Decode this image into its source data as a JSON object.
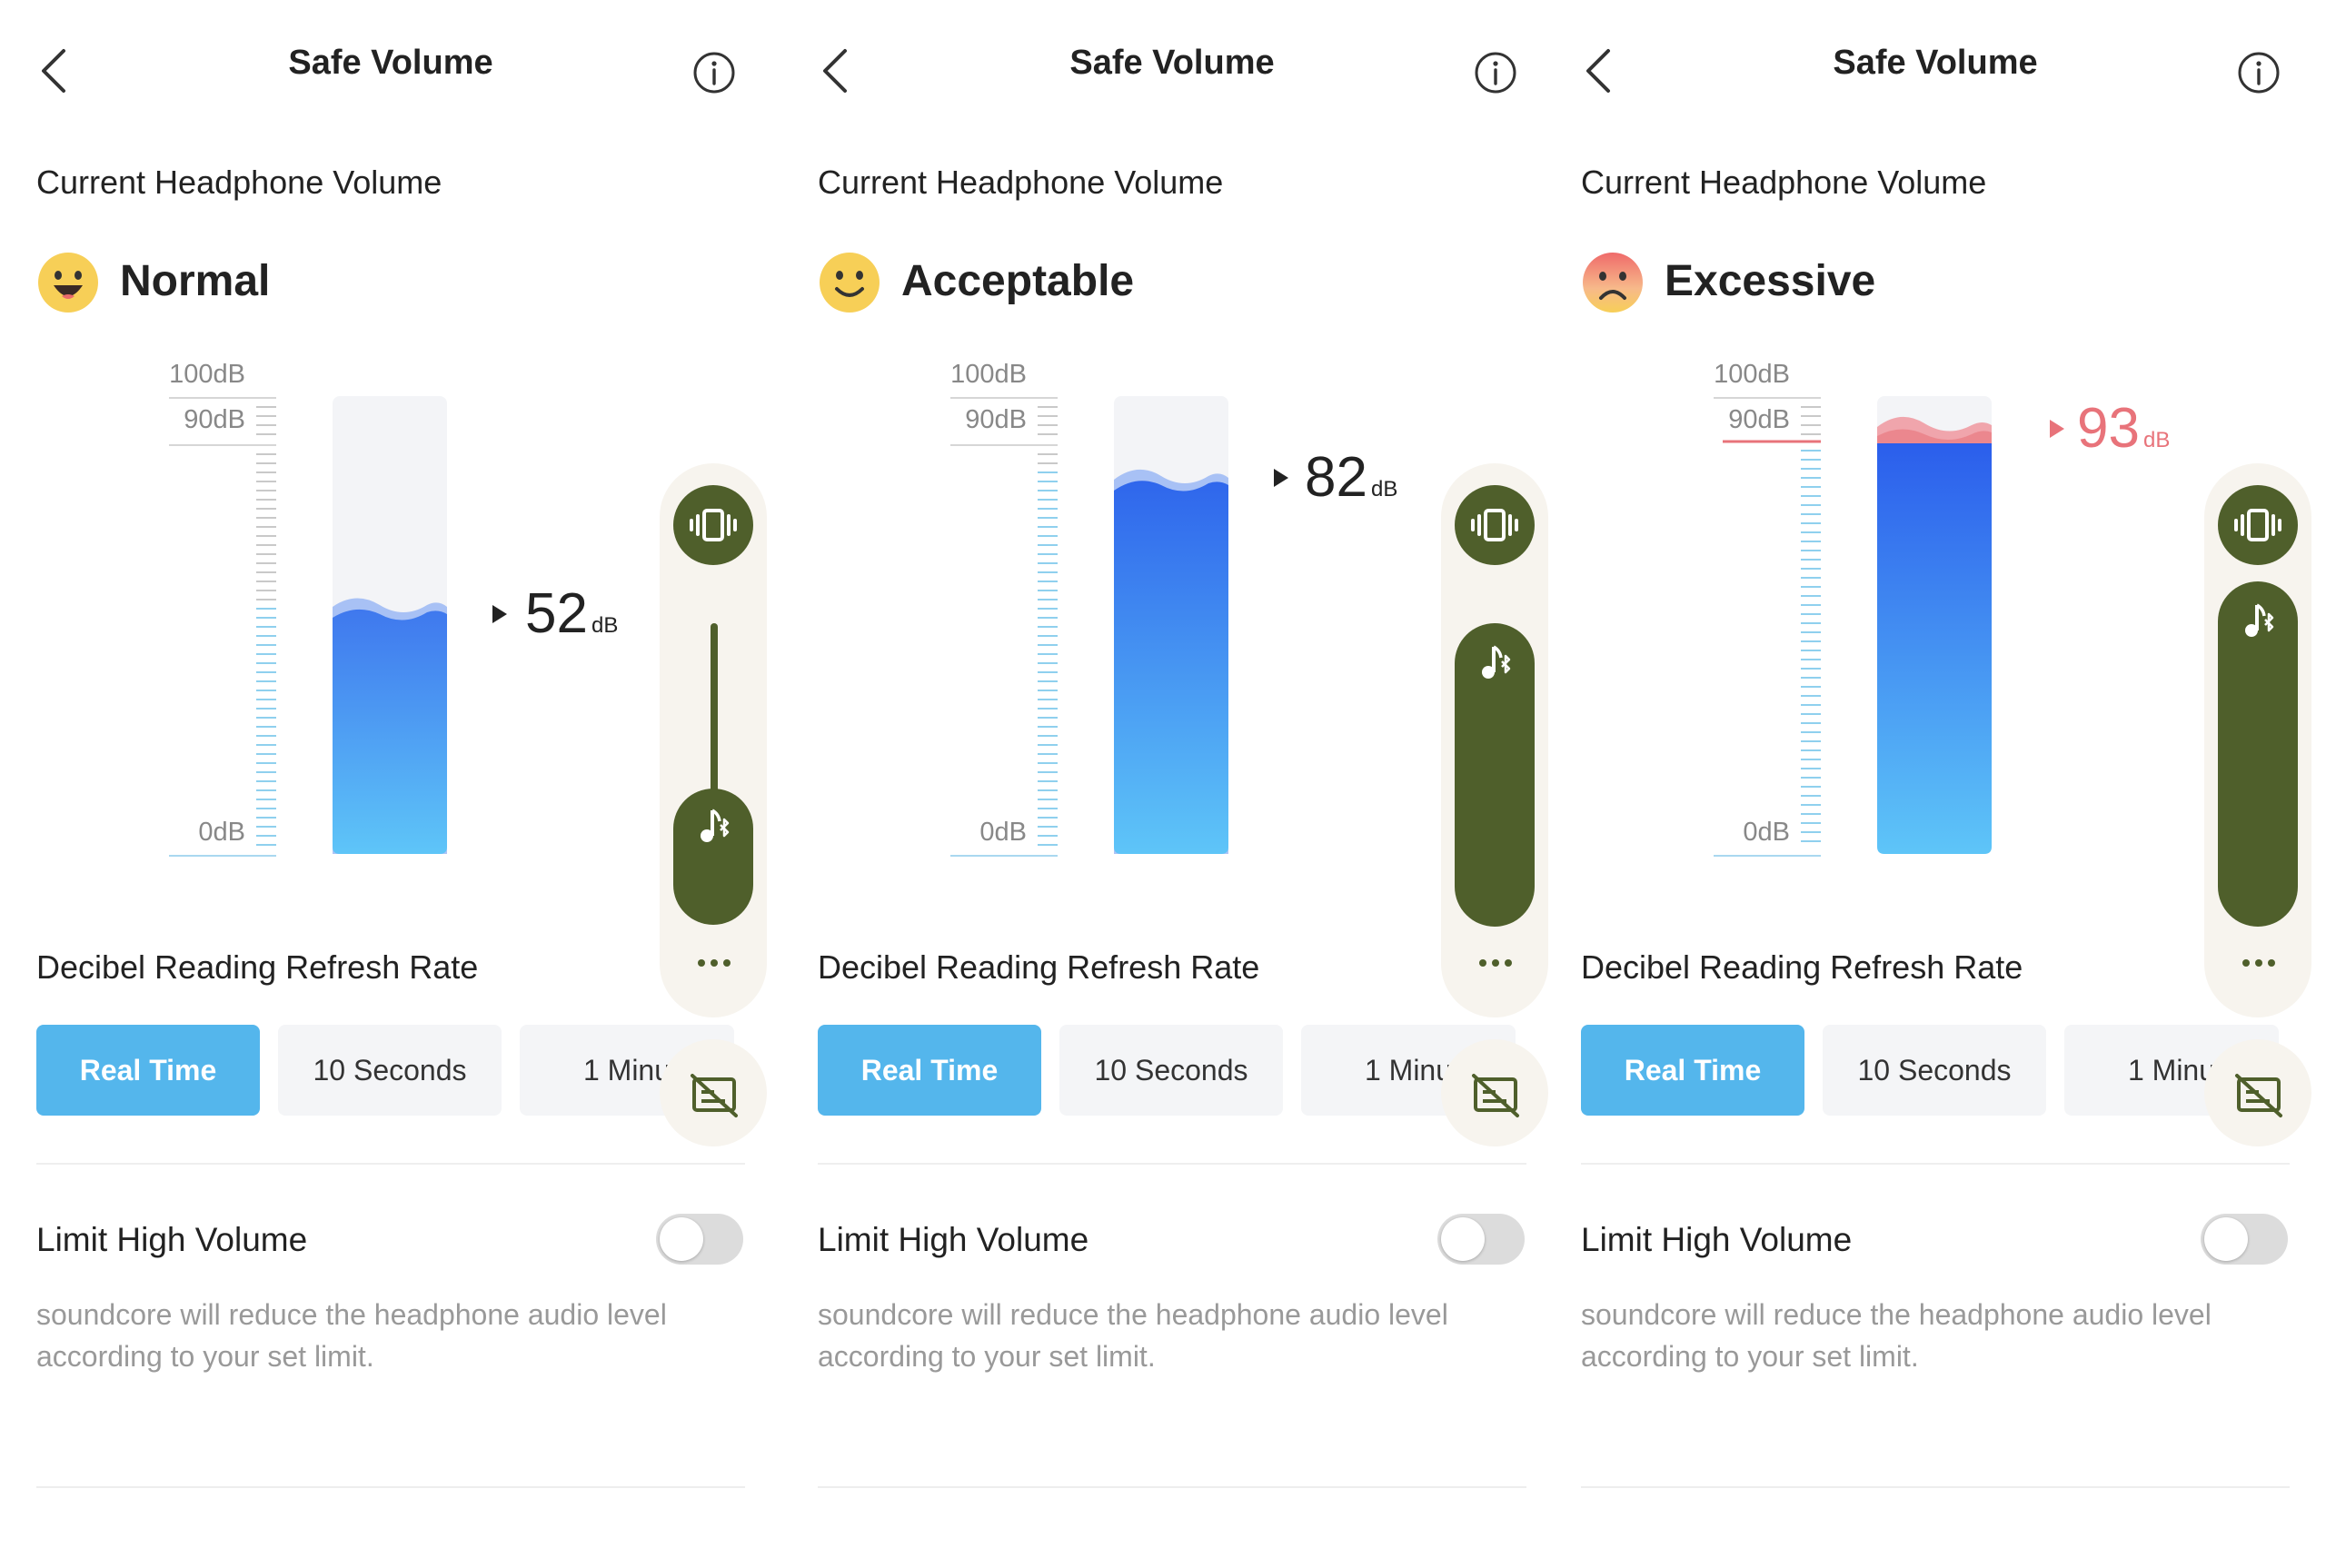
{
  "panels": [
    {
      "header": {
        "title": "Safe Volume"
      },
      "current_label": "Current Headphone Volume",
      "status": {
        "text": "Normal",
        "mood": "happy"
      },
      "meter": {
        "tick_top": "100dB",
        "tick_90": "90dB",
        "tick_zero": "0dB",
        "value": "52",
        "unit": "dB",
        "level_percent": 52
      },
      "controls": {
        "slider_level": "low",
        "vibrate_icon": "vibrate-icon",
        "music_icon": "music-bluetooth-icon",
        "more_icon": "more-icon",
        "subtitle_off_icon": "subtitle-off-icon"
      },
      "refresh": {
        "label": "Decibel Reading Refresh Rate",
        "options": [
          "Real Time",
          "10 Seconds",
          "1 Minu"
        ],
        "selected": "Real Time"
      },
      "limit": {
        "label": "Limit High Volume",
        "enabled": false,
        "description": "soundcore will reduce the headphone audio level according to your set limit."
      }
    },
    {
      "header": {
        "title": "Safe Volume"
      },
      "current_label": "Current Headphone Volume",
      "status": {
        "text": "Acceptable",
        "mood": "smile"
      },
      "meter": {
        "tick_top": "100dB",
        "tick_90": "90dB",
        "tick_zero": "0dB",
        "value": "82",
        "unit": "dB",
        "level_percent": 82
      },
      "controls": {
        "slider_level": "high",
        "vibrate_icon": "vibrate-icon",
        "music_icon": "music-bluetooth-icon",
        "more_icon": "more-icon",
        "subtitle_off_icon": "subtitle-off-icon"
      },
      "refresh": {
        "label": "Decibel Reading Refresh Rate",
        "options": [
          "Real Time",
          "10 Seconds",
          "1 Minu"
        ],
        "selected": "Real Time"
      },
      "limit": {
        "label": "Limit High Volume",
        "enabled": false,
        "description": "soundcore will reduce the headphone audio level according to your set limit."
      }
    },
    {
      "header": {
        "title": "Safe Volume"
      },
      "current_label": "Current Headphone Volume",
      "status": {
        "text": "Excessive",
        "mood": "sad"
      },
      "meter": {
        "tick_top": "100dB",
        "tick_90": "90dB",
        "tick_zero": "0dB",
        "value": "93",
        "unit": "dB",
        "level_percent": 93
      },
      "controls": {
        "slider_level": "max",
        "vibrate_icon": "vibrate-icon",
        "music_icon": "music-bluetooth-icon",
        "more_icon": "more-icon",
        "subtitle_off_icon": "subtitle-off-icon"
      },
      "refresh": {
        "label": "Decibel Reading Refresh Rate",
        "options": [
          "Real Time",
          "10 Seconds",
          "1 Minu"
        ],
        "selected": "Real Time"
      },
      "limit": {
        "label": "Limit High Volume",
        "enabled": false,
        "description": "soundcore will reduce the headphone audio level according to your set limit."
      }
    }
  ],
  "colors": {
    "accent_blue": "#54b6ec",
    "meter_blue_top": "#2f66ec",
    "meter_blue_bottom": "#5ec5f8",
    "warning_red": "#e8737a",
    "olive": "#4f5f2b",
    "panel_bg": "#f7f4ee"
  }
}
